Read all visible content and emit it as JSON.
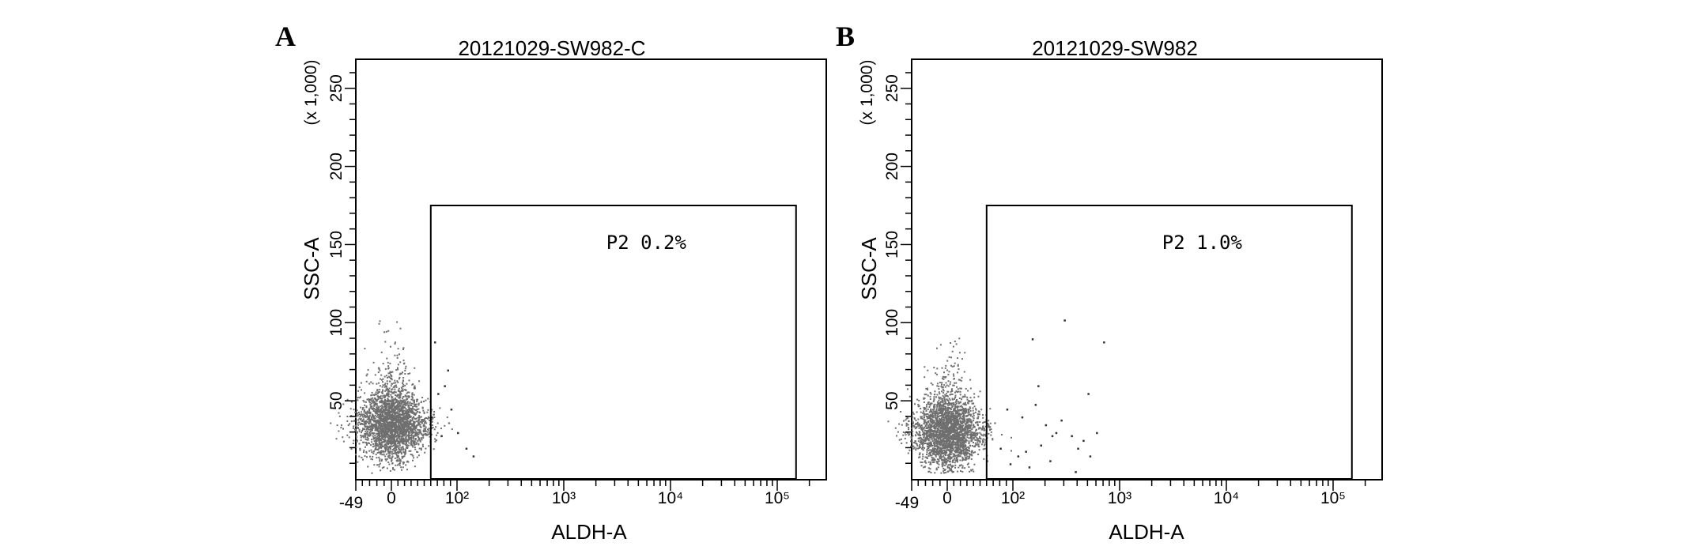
{
  "chart_data": [
    {
      "panel": "A",
      "type": "scatter",
      "title": "20121029-SW982-C",
      "xlabel": "ALDH-A",
      "ylabel": "SSC-A",
      "ylabel_multiplier": "(x 1,000)",
      "x_scale": "biexponential",
      "x_tick_labels": [
        "-49",
        "0",
        "10²",
        "10³",
        "10⁴",
        "10⁵"
      ],
      "x_ticks": [
        -49,
        0,
        100,
        1000,
        10000,
        100000
      ],
      "ylim": [
        0,
        262
      ],
      "y_ticks": [
        50,
        100,
        150,
        200,
        250
      ],
      "y_tick_labels": [
        "50",
        "100",
        "150",
        "200",
        "250"
      ],
      "gate": {
        "name": "P2",
        "percent": "0.2%",
        "label": "P2  0.2%",
        "x_range": [
          60,
          150000
        ],
        "y_range": [
          0,
          175
        ]
      },
      "population": {
        "x_center": 5,
        "y_center": 35,
        "y_max": 115,
        "color": "#6f6f6f"
      },
      "outliers": [
        [
          60,
          40
        ],
        [
          70,
          55
        ],
        [
          80,
          60
        ],
        [
          90,
          45
        ],
        [
          120,
          20
        ],
        [
          65,
          88
        ],
        [
          75,
          28
        ],
        [
          140,
          15
        ],
        [
          85,
          70
        ],
        [
          100,
          30
        ]
      ]
    },
    {
      "panel": "B",
      "type": "scatter",
      "title": "20121029-SW982",
      "xlabel": "ALDH-A",
      "ylabel": "SSC-A",
      "ylabel_multiplier": "(x 1,000)",
      "x_scale": "biexponential",
      "x_tick_labels": [
        "-49",
        "0",
        "10²",
        "10³",
        "10⁴",
        "10⁵"
      ],
      "x_ticks": [
        -49,
        0,
        100,
        1000,
        10000,
        100000
      ],
      "ylim": [
        0,
        262
      ],
      "y_ticks": [
        50,
        100,
        150,
        200,
        250
      ],
      "y_tick_labels": [
        "50",
        "100",
        "150",
        "200",
        "250"
      ],
      "gate": {
        "name": "P2",
        "percent": "1.0%",
        "label": "P2  1.0%",
        "x_range": [
          60,
          150000
        ],
        "y_range": [
          0,
          175
        ]
      },
      "population": {
        "x_center": 5,
        "y_center": 30,
        "y_max": 115,
        "color": "#6f6f6f"
      },
      "outliers": [
        [
          300,
          102
        ],
        [
          700,
          88
        ],
        [
          150,
          90
        ],
        [
          500,
          55
        ],
        [
          120,
          40
        ],
        [
          200,
          35
        ],
        [
          250,
          30
        ],
        [
          350,
          28
        ],
        [
          400,
          20
        ],
        [
          600,
          30
        ],
        [
          450,
          25
        ],
        [
          180,
          22
        ],
        [
          130,
          18
        ],
        [
          110,
          15
        ],
        [
          90,
          45
        ],
        [
          220,
          12
        ],
        [
          280,
          38
        ],
        [
          160,
          48
        ],
        [
          80,
          20
        ],
        [
          95,
          10
        ],
        [
          140,
          8
        ],
        [
          380,
          5
        ],
        [
          520,
          15
        ],
        [
          230,
          28
        ],
        [
          170,
          60
        ]
      ]
    }
  ]
}
